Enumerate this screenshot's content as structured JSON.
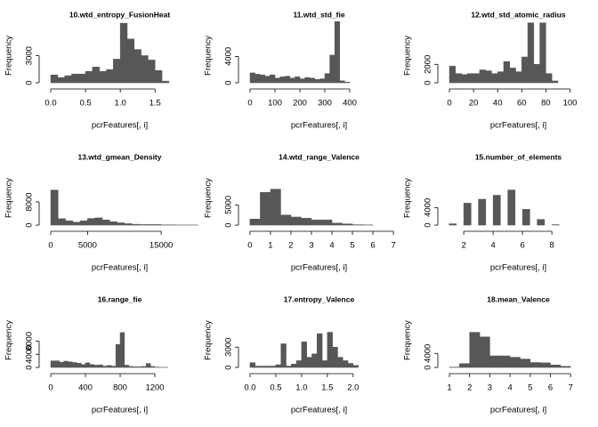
{
  "chart_data": [
    {
      "type": "histogram",
      "title": "10.wtd_entropy_FusionHeat",
      "xlabel": "pcrFeatures[, i]",
      "ylabel": "Frequency",
      "color": "#575757",
      "bins": [
        0,
        0.1,
        0.2,
        0.3,
        0.4,
        0.5,
        0.6,
        0.7,
        0.8,
        0.9,
        1.0,
        1.1,
        1.2,
        1.3,
        1.4,
        1.5,
        1.6,
        1.7
      ],
      "counts": [
        870,
        580,
        780,
        970,
        970,
        1260,
        1750,
        1260,
        1460,
        2620,
        6600,
        4850,
        3690,
        3010,
        2520,
        1360,
        190
      ],
      "xlim": [
        -0.09,
        2.15
      ],
      "ylim": [
        -290,
        7100
      ],
      "xticks": [
        {
          "value": 0,
          "label": "0.0"
        },
        0.5,
        {
          "value": 1,
          "label": "1.0"
        },
        1.5
      ],
      "yticks": [
        0,
        3000
      ]
    },
    {
      "type": "histogram",
      "title": "11.wtd_std_fie",
      "xlabel": "pcrFeatures[, i]",
      "ylabel": "Frequency",
      "color": "#575757",
      "bins": [
        0,
        20,
        40,
        60,
        80,
        100,
        120,
        140,
        160,
        180,
        200,
        220,
        240,
        260,
        280,
        300,
        320,
        340,
        360,
        380,
        400
      ],
      "counts": [
        1500,
        1300,
        1200,
        1000,
        1200,
        700,
        900,
        1000,
        700,
        900,
        600,
        800,
        700,
        500,
        600,
        1400,
        4200,
        9300,
        300,
        100
      ],
      "xlim": [
        -25,
        600
      ],
      "ylim": [
        -400,
        9730
      ],
      "xticks": [
        0,
        100,
        200,
        300,
        400
      ],
      "yticks": [
        0,
        4000
      ]
    },
    {
      "type": "histogram",
      "title": "12.wtd_std_atomic_radius",
      "xlabel": "pcrFeatures[, i]",
      "ylabel": "Frequency",
      "color": "#575757",
      "bins": [
        0,
        5,
        10,
        15,
        20,
        25,
        30,
        35,
        40,
        45,
        50,
        55,
        60,
        65,
        70,
        75,
        80,
        85,
        90
      ],
      "counts": [
        1800,
        1000,
        900,
        1000,
        1000,
        1400,
        1300,
        1000,
        1200,
        2300,
        1600,
        1200,
        2800,
        6500,
        2000,
        6500,
        1000,
        200
      ],
      "xlim": [
        -5.2,
        124
      ],
      "ylim": [
        -285,
        6950
      ],
      "xticks": [
        0,
        20,
        40,
        60,
        80,
        100
      ],
      "yticks": [
        0,
        2000
      ]
    },
    {
      "type": "histogram",
      "title": "13.wtd_gmean_Density",
      "xlabel": "pcrFeatures[, i]",
      "ylabel": "Frequency",
      "color": "#575757",
      "bins": [
        0,
        1000,
        2000,
        3000,
        4000,
        5000,
        6000,
        7000,
        8000,
        9000,
        10000,
        11000,
        12000,
        13000,
        14000,
        15000,
        16000,
        17000,
        18000,
        19000,
        20000
      ],
      "counts": [
        12100,
        2200,
        1500,
        1000,
        1500,
        2300,
        2500,
        1800,
        1200,
        800,
        500,
        300,
        200,
        200,
        200,
        100,
        100,
        50,
        50,
        50
      ],
      "xlim": [
        -850,
        20300
      ],
      "ylim": [
        -900,
        22100
      ],
      "xticks": [
        0,
        5000,
        15000
      ],
      "yticks": [
        0,
        8000
      ]
    },
    {
      "type": "histogram",
      "title": "14.wtd_range_Valence",
      "xlabel": "pcrFeatures[, i]",
      "ylabel": "Frequency",
      "color": "#575757",
      "bins": [
        0,
        0.5,
        1,
        1.5,
        2,
        2.5,
        3,
        3.5,
        4,
        4.5,
        5,
        5.5,
        6
      ],
      "counts": [
        1500,
        8100,
        8900,
        2500,
        2000,
        1700,
        1300,
        1300,
        500,
        300,
        100,
        50
      ],
      "xlim": [
        -0.3,
        7.3
      ],
      "ylim": [
        -650,
        15870
      ],
      "xticks": [
        0,
        1,
        2,
        3,
        4,
        5,
        6,
        7
      ],
      "yticks": [
        0,
        5000
      ]
    },
    {
      "type": "histogram",
      "title": "15.number_of_elements",
      "xlabel": "pcrFeatures[, i]",
      "ylabel": "Frequency",
      "color": "#575757",
      "bins": [
        1,
        1.5,
        2,
        2.5,
        3,
        3.5,
        4,
        4.5,
        5,
        5.5,
        6,
        6.5,
        7,
        7.5,
        8,
        8.5
      ],
      "counts": [
        300,
        0,
        5000,
        0,
        5900,
        0,
        6800,
        0,
        8000,
        0,
        3600,
        0,
        1300,
        0,
        100
      ],
      "xlim": [
        0.6,
        11.2
      ],
      "ylim": [
        -600,
        14600
      ],
      "xticks": [
        2,
        4,
        6,
        8
      ],
      "yticks": [
        0,
        4000
      ]
    },
    {
      "type": "histogram",
      "title": "16.range_fie",
      "xlabel": "pcrFeatures[, i]",
      "ylabel": "Frequency",
      "color": "#575757",
      "bins": [
        0,
        50,
        100,
        150,
        200,
        250,
        300,
        350,
        400,
        450,
        500,
        550,
        600,
        650,
        700,
        750,
        800,
        850,
        900,
        950,
        1000,
        1050,
        1100,
        1150,
        1200,
        1250,
        1300,
        1350
      ],
      "counts": [
        2000,
        2000,
        1600,
        1900,
        1700,
        1500,
        1300,
        900,
        1400,
        900,
        700,
        800,
        400,
        600,
        400,
        7000,
        10600,
        700,
        300,
        200,
        200,
        300,
        1200,
        300,
        100,
        50,
        50
      ],
      "xlim": [
        -72,
        1723
      ],
      "ylim": [
        -800,
        19470
      ],
      "xticks": [
        0,
        400,
        800,
        1200
      ],
      "yticks": [
        0,
        4000,
        8000
      ]
    },
    {
      "type": "histogram",
      "title": "17.entropy_Valence",
      "xlabel": "pcrFeatures[, i]",
      "ylabel": "Frequency",
      "color": "#575757",
      "bins": [
        0,
        0.1,
        0.2,
        0.3,
        0.4,
        0.5,
        0.6,
        0.7,
        0.8,
        0.9,
        1.0,
        1.1,
        1.2,
        1.3,
        1.4,
        1.5,
        1.6,
        1.7,
        1.8,
        1.9,
        2.0,
        2.1
      ],
      "counts": [
        700,
        200,
        200,
        200,
        200,
        400,
        3500,
        200,
        500,
        1000,
        3800,
        1500,
        2000,
        5000,
        1000,
        5200,
        3000,
        1500,
        1000,
        600,
        300
      ],
      "xlim": [
        -0.12,
        2.9
      ],
      "ylim": [
        -390,
        9480
      ],
      "xticks": [
        {
          "value": 0,
          "label": "0.0"
        },
        0.5,
        {
          "value": 1,
          "label": "1.0"
        },
        1.5,
        {
          "value": 2,
          "label": "2.0"
        }
      ],
      "yticks": [
        0,
        3000
      ]
    },
    {
      "type": "histogram",
      "title": "18.mean_Valence",
      "xlabel": "pcrFeatures[, i]",
      "ylabel": "Frequency",
      "color": "#575757",
      "bins": [
        1,
        1.5,
        2,
        2.5,
        3,
        3.5,
        4,
        4.5,
        5,
        5.5,
        6,
        6.5,
        7
      ],
      "counts": [
        100,
        1100,
        10000,
        8700,
        3300,
        3300,
        2900,
        2400,
        1400,
        1300,
        700,
        300
      ],
      "xlim": [
        0.69,
        8.4
      ],
      "ylim": [
        -750,
        18250
      ],
      "xticks": [
        1,
        2,
        3,
        4,
        5,
        6,
        7
      ],
      "yticks": [
        0,
        4000
      ]
    }
  ]
}
